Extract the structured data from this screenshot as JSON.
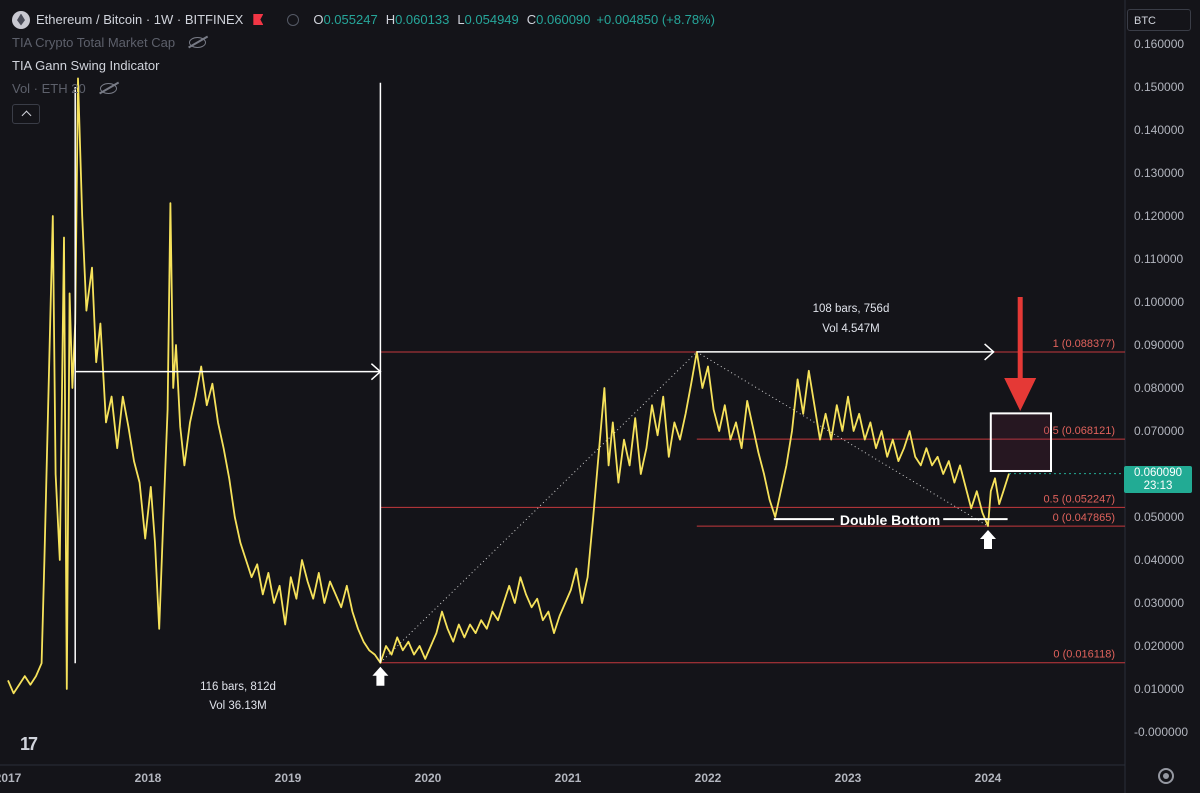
{
  "header": {
    "symbol_title": "Ethereum / Bitcoin · 1W · BITFINEX",
    "ohlc": {
      "o_label": "O",
      "o": "0.055247",
      "h_label": "H",
      "h": "0.060133",
      "l_label": "L",
      "l": "0.054949",
      "c_label": "C",
      "c": "0.060090",
      "change": "+0.004850 (+8.78%)"
    },
    "indicators": [
      {
        "label": "TIA Crypto Total Market Cap"
      },
      {
        "label": "TIA Gann Swing Indicator"
      },
      {
        "label": "Vol · ETH 20"
      }
    ],
    "currency": "BTC",
    "icons": {
      "symbol": "eth-logo-icon",
      "flag": "flag-icon",
      "hidden": "eye-off-icon",
      "collapse": "chevron-up-icon",
      "settings": "gear-icon",
      "logo": "tradingview-logo-icon"
    }
  },
  "price_badge": {
    "price": "0.060090",
    "countdown": "23:13"
  },
  "colors": {
    "background": "#141419",
    "price_line": "#f6e25b",
    "fib_line": "#c3383d",
    "up": "#26a69a",
    "annotation": "#ffffff",
    "arrow": "#e53936"
  },
  "chart_data": {
    "type": "line",
    "y_axis": {
      "min": 0.0,
      "max": 0.16,
      "ticks": [
        "0.160000",
        "0.150000",
        "0.140000",
        "0.130000",
        "0.120000",
        "0.110000",
        "0.100000",
        "0.090000",
        "0.080000",
        "0.070000",
        "0.060000",
        "0.050000",
        "0.040000",
        "0.030000",
        "0.020000",
        "0.010000",
        "-0.000000"
      ]
    },
    "x_axis": {
      "min": 2017.0,
      "max": 2024.25,
      "ticks": [
        "2017",
        "2018",
        "2019",
        "2020",
        "2021",
        "2022",
        "2023",
        "2024"
      ]
    },
    "series": [
      {
        "points": [
          [
            2017.0,
            0.012
          ],
          [
            2017.04,
            0.009
          ],
          [
            2017.08,
            0.011
          ],
          [
            2017.12,
            0.013
          ],
          [
            2017.16,
            0.011
          ],
          [
            2017.2,
            0.013
          ],
          [
            2017.24,
            0.016
          ],
          [
            2017.26,
            0.04
          ],
          [
            2017.29,
            0.08
          ],
          [
            2017.32,
            0.12
          ],
          [
            2017.34,
            0.06
          ],
          [
            2017.37,
            0.04
          ],
          [
            2017.4,
            0.115
          ],
          [
            2017.42,
            0.01
          ],
          [
            2017.44,
            0.102
          ],
          [
            2017.46,
            0.08
          ],
          [
            2017.48,
            0.095
          ],
          [
            2017.5,
            0.152
          ],
          [
            2017.53,
            0.12
          ],
          [
            2017.56,
            0.098
          ],
          [
            2017.6,
            0.108
          ],
          [
            2017.63,
            0.086
          ],
          [
            2017.66,
            0.095
          ],
          [
            2017.7,
            0.072
          ],
          [
            2017.74,
            0.078
          ],
          [
            2017.78,
            0.066
          ],
          [
            2017.82,
            0.078
          ],
          [
            2017.86,
            0.071
          ],
          [
            2017.9,
            0.063
          ],
          [
            2017.94,
            0.058
          ],
          [
            2017.98,
            0.045
          ],
          [
            2018.02,
            0.057
          ],
          [
            2018.05,
            0.044
          ],
          [
            2018.08,
            0.024
          ],
          [
            2018.11,
            0.05
          ],
          [
            2018.14,
            0.075
          ],
          [
            2018.16,
            0.123
          ],
          [
            2018.18,
            0.08
          ],
          [
            2018.2,
            0.09
          ],
          [
            2018.23,
            0.071
          ],
          [
            2018.26,
            0.062
          ],
          [
            2018.3,
            0.072
          ],
          [
            2018.34,
            0.078
          ],
          [
            2018.38,
            0.085
          ],
          [
            2018.42,
            0.076
          ],
          [
            2018.46,
            0.081
          ],
          [
            2018.5,
            0.072
          ],
          [
            2018.54,
            0.066
          ],
          [
            2018.58,
            0.059
          ],
          [
            2018.62,
            0.05
          ],
          [
            2018.66,
            0.044
          ],
          [
            2018.7,
            0.04
          ],
          [
            2018.74,
            0.036
          ],
          [
            2018.78,
            0.039
          ],
          [
            2018.82,
            0.032
          ],
          [
            2018.86,
            0.037
          ],
          [
            2018.9,
            0.03
          ],
          [
            2018.94,
            0.034
          ],
          [
            2018.98,
            0.025
          ],
          [
            2019.02,
            0.036
          ],
          [
            2019.06,
            0.031
          ],
          [
            2019.1,
            0.04
          ],
          [
            2019.14,
            0.035
          ],
          [
            2019.18,
            0.031
          ],
          [
            2019.22,
            0.037
          ],
          [
            2019.26,
            0.03
          ],
          [
            2019.3,
            0.035
          ],
          [
            2019.34,
            0.032
          ],
          [
            2019.38,
            0.029
          ],
          [
            2019.42,
            0.034
          ],
          [
            2019.46,
            0.028
          ],
          [
            2019.5,
            0.024
          ],
          [
            2019.54,
            0.021
          ],
          [
            2019.58,
            0.019
          ],
          [
            2019.62,
            0.018
          ],
          [
            2019.66,
            0.0161
          ],
          [
            2019.7,
            0.02
          ],
          [
            2019.74,
            0.018
          ],
          [
            2019.78,
            0.022
          ],
          [
            2019.82,
            0.019
          ],
          [
            2019.86,
            0.021
          ],
          [
            2019.9,
            0.018
          ],
          [
            2019.94,
            0.02
          ],
          [
            2019.98,
            0.017
          ],
          [
            2020.02,
            0.02
          ],
          [
            2020.06,
            0.023
          ],
          [
            2020.1,
            0.028
          ],
          [
            2020.14,
            0.024
          ],
          [
            2020.18,
            0.021
          ],
          [
            2020.22,
            0.025
          ],
          [
            2020.26,
            0.022
          ],
          [
            2020.3,
            0.025
          ],
          [
            2020.34,
            0.023
          ],
          [
            2020.38,
            0.026
          ],
          [
            2020.42,
            0.024
          ],
          [
            2020.46,
            0.028
          ],
          [
            2020.5,
            0.026
          ],
          [
            2020.54,
            0.03
          ],
          [
            2020.58,
            0.034
          ],
          [
            2020.62,
            0.03
          ],
          [
            2020.66,
            0.036
          ],
          [
            2020.7,
            0.032
          ],
          [
            2020.74,
            0.029
          ],
          [
            2020.78,
            0.031
          ],
          [
            2020.82,
            0.026
          ],
          [
            2020.86,
            0.028
          ],
          [
            2020.9,
            0.023
          ],
          [
            2020.94,
            0.027
          ],
          [
            2020.98,
            0.03
          ],
          [
            2021.02,
            0.033
          ],
          [
            2021.06,
            0.038
          ],
          [
            2021.1,
            0.03
          ],
          [
            2021.14,
            0.036
          ],
          [
            2021.18,
            0.05
          ],
          [
            2021.22,
            0.065
          ],
          [
            2021.26,
            0.08
          ],
          [
            2021.29,
            0.062
          ],
          [
            2021.32,
            0.072
          ],
          [
            2021.36,
            0.058
          ],
          [
            2021.4,
            0.068
          ],
          [
            2021.44,
            0.062
          ],
          [
            2021.48,
            0.073
          ],
          [
            2021.52,
            0.06
          ],
          [
            2021.56,
            0.066
          ],
          [
            2021.6,
            0.076
          ],
          [
            2021.64,
            0.069
          ],
          [
            2021.68,
            0.078
          ],
          [
            2021.72,
            0.064
          ],
          [
            2021.76,
            0.072
          ],
          [
            2021.8,
            0.068
          ],
          [
            2021.84,
            0.074
          ],
          [
            2021.88,
            0.081
          ],
          [
            2021.92,
            0.0884
          ],
          [
            2021.96,
            0.08
          ],
          [
            2022.0,
            0.085
          ],
          [
            2022.04,
            0.075
          ],
          [
            2022.08,
            0.07
          ],
          [
            2022.12,
            0.076
          ],
          [
            2022.16,
            0.068
          ],
          [
            2022.2,
            0.072
          ],
          [
            2022.24,
            0.066
          ],
          [
            2022.28,
            0.077
          ],
          [
            2022.32,
            0.071
          ],
          [
            2022.36,
            0.065
          ],
          [
            2022.4,
            0.06
          ],
          [
            2022.44,
            0.054
          ],
          [
            2022.48,
            0.05
          ],
          [
            2022.52,
            0.056
          ],
          [
            2022.56,
            0.062
          ],
          [
            2022.6,
            0.07
          ],
          [
            2022.64,
            0.082
          ],
          [
            2022.68,
            0.074
          ],
          [
            2022.72,
            0.084
          ],
          [
            2022.76,
            0.076
          ],
          [
            2022.8,
            0.068
          ],
          [
            2022.84,
            0.074
          ],
          [
            2022.88,
            0.068
          ],
          [
            2022.92,
            0.076
          ],
          [
            2022.96,
            0.07
          ],
          [
            2023.0,
            0.078
          ],
          [
            2023.04,
            0.07
          ],
          [
            2023.08,
            0.074
          ],
          [
            2023.12,
            0.068
          ],
          [
            2023.16,
            0.072
          ],
          [
            2023.2,
            0.066
          ],
          [
            2023.24,
            0.07
          ],
          [
            2023.28,
            0.064
          ],
          [
            2023.32,
            0.068
          ],
          [
            2023.36,
            0.063
          ],
          [
            2023.4,
            0.066
          ],
          [
            2023.44,
            0.07
          ],
          [
            2023.48,
            0.064
          ],
          [
            2023.52,
            0.062
          ],
          [
            2023.56,
            0.066
          ],
          [
            2023.6,
            0.062
          ],
          [
            2023.64,
            0.064
          ],
          [
            2023.68,
            0.06
          ],
          [
            2023.72,
            0.063
          ],
          [
            2023.76,
            0.058
          ],
          [
            2023.8,
            0.062
          ],
          [
            2023.84,
            0.057
          ],
          [
            2023.88,
            0.052
          ],
          [
            2023.92,
            0.056
          ],
          [
            2023.96,
            0.051
          ],
          [
            2024.0,
            0.0479
          ],
          [
            2024.02,
            0.056
          ],
          [
            2024.05,
            0.059
          ],
          [
            2024.08,
            0.053
          ],
          [
            2024.11,
            0.056
          ],
          [
            2024.15,
            0.0601
          ]
        ]
      }
    ],
    "fib_levels": [
      {
        "label": "1 (0.088377)",
        "value": 0.088377,
        "x_start": 2019.66
      },
      {
        "label": "0.5 (0.068121)",
        "value": 0.068121,
        "x_start": 2021.92
      },
      {
        "label": "0.5 (0.052247)",
        "value": 0.052247,
        "x_start": 2019.66
      },
      {
        "label": "0 (0.047865)",
        "value": 0.047865,
        "x_start": 2021.92
      },
      {
        "label": "0 (0.016118)",
        "value": 0.016118,
        "x_start": 2019.66
      }
    ],
    "annotations": {
      "range_left": {
        "line1": "116 bars, 812d",
        "line2": "Vol 36.13M"
      },
      "range_right": {
        "line1": "108 bars, 756d",
        "line2": "Vol 4.547M"
      },
      "pattern_label": "Double Bottom"
    }
  }
}
